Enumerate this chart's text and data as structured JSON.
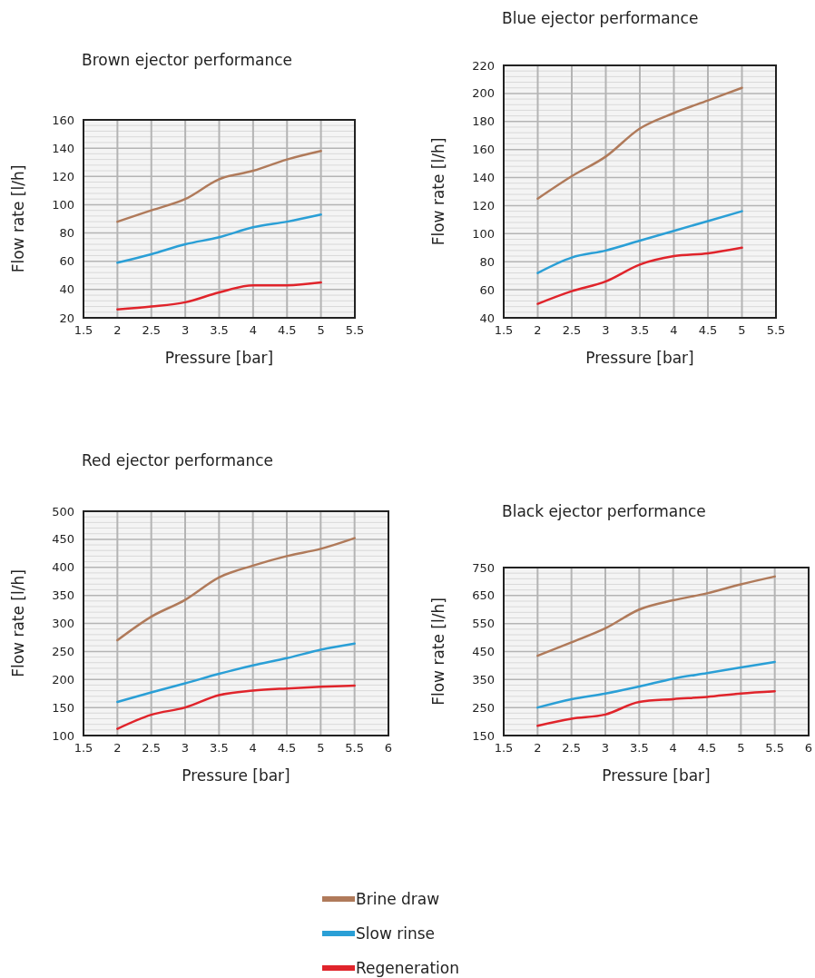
{
  "chart_data": [
    {
      "type": "line",
      "title": "Brown ejector performance",
      "xlabel": "Pressure [bar]",
      "ylabel": "Flow rate [l/h]",
      "x": [
        2,
        2.5,
        3,
        3.5,
        4,
        4.5,
        5
      ],
      "xlim": [
        1.5,
        5.5
      ],
      "xticks": [
        1.5,
        2,
        2.5,
        3,
        3.5,
        4,
        4.5,
        5,
        5.5
      ],
      "ylim": [
        20,
        160
      ],
      "yticks": [
        20,
        40,
        60,
        80,
        100,
        120,
        140,
        160
      ],
      "grid": true,
      "legend": "bottom",
      "series": [
        {
          "name": "Brine draw",
          "color": "#b07a5a",
          "values": [
            88,
            96,
            104,
            118,
            124,
            132,
            138
          ]
        },
        {
          "name": "Slow rinse",
          "color": "#2a9fd6",
          "values": [
            59,
            65,
            72,
            77,
            84,
            88,
            93
          ]
        },
        {
          "name": "Regeneration",
          "color": "#e0242b",
          "values": [
            26,
            28,
            31,
            38,
            43,
            43,
            45
          ]
        }
      ]
    },
    {
      "type": "line",
      "title": "Blue ejector performance",
      "xlabel": "Pressure [bar]",
      "ylabel": "Flow rate [l/h]",
      "x": [
        2,
        2.5,
        3,
        3.5,
        4,
        4.5,
        5
      ],
      "xlim": [
        1.5,
        5.5
      ],
      "xticks": [
        1.5,
        2,
        2.5,
        3,
        3.5,
        4,
        4.5,
        5,
        5.5
      ],
      "ylim": [
        40,
        220
      ],
      "yticks": [
        40,
        60,
        80,
        100,
        120,
        140,
        160,
        180,
        200,
        220
      ],
      "grid": true,
      "series": [
        {
          "color": "#b07a5a",
          "values": [
            125,
            141,
            155,
            175,
            186,
            195,
            204
          ]
        },
        {
          "color": "#2a9fd6",
          "values": [
            72,
            83,
            88,
            95,
            102,
            109,
            116
          ]
        },
        {
          "color": "#e0242b",
          "values": [
            50,
            59,
            66,
            78,
            84,
            86,
            90
          ]
        }
      ]
    },
    {
      "type": "line",
      "title": "Red ejector performance",
      "xlabel": "Pressure [bar]",
      "ylabel": "Flow rate [l/h]",
      "x": [
        2,
        2.5,
        3,
        3.5,
        4,
        4.5,
        5,
        5.5
      ],
      "xlim": [
        1.5,
        6
      ],
      "xticks": [
        1.5,
        2,
        2.5,
        3,
        3.5,
        4,
        4.5,
        5,
        5.5,
        6
      ],
      "ylim": [
        100,
        500
      ],
      "yticks": [
        100,
        150,
        200,
        250,
        300,
        350,
        400,
        450,
        500
      ],
      "grid": true,
      "series": [
        {
          "color": "#b07a5a",
          "values": [
            270,
            312,
            342,
            382,
            403,
            420,
            433,
            452
          ]
        },
        {
          "color": "#2a9fd6",
          "values": [
            160,
            177,
            193,
            210,
            225,
            238,
            253,
            264
          ]
        },
        {
          "color": "#e0242b",
          "values": [
            112,
            137,
            150,
            172,
            180,
            184,
            187,
            189
          ]
        }
      ]
    },
    {
      "type": "line",
      "title": "Black ejector performance",
      "xlabel": "Pressure [bar]",
      "ylabel": "Flow rate [l/h]",
      "x": [
        2,
        2.5,
        3,
        3.5,
        4,
        4.5,
        5,
        5.5
      ],
      "xlim": [
        1.5,
        6
      ],
      "xticks": [
        1.5,
        2,
        2.5,
        3,
        3.5,
        4,
        4.5,
        5,
        5.5,
        6
      ],
      "ylim": [
        150,
        750
      ],
      "yticks": [
        150,
        250,
        350,
        450,
        550,
        650,
        750
      ],
      "grid": true,
      "series": [
        {
          "color": "#b07a5a",
          "values": [
            435,
            483,
            533,
            600,
            633,
            658,
            690,
            718
          ]
        },
        {
          "color": "#2a9fd6",
          "values": [
            250,
            280,
            300,
            325,
            353,
            373,
            393,
            413
          ]
        },
        {
          "color": "#e0242b",
          "values": [
            185,
            210,
            225,
            270,
            280,
            288,
            300,
            308
          ]
        }
      ]
    }
  ]
}
